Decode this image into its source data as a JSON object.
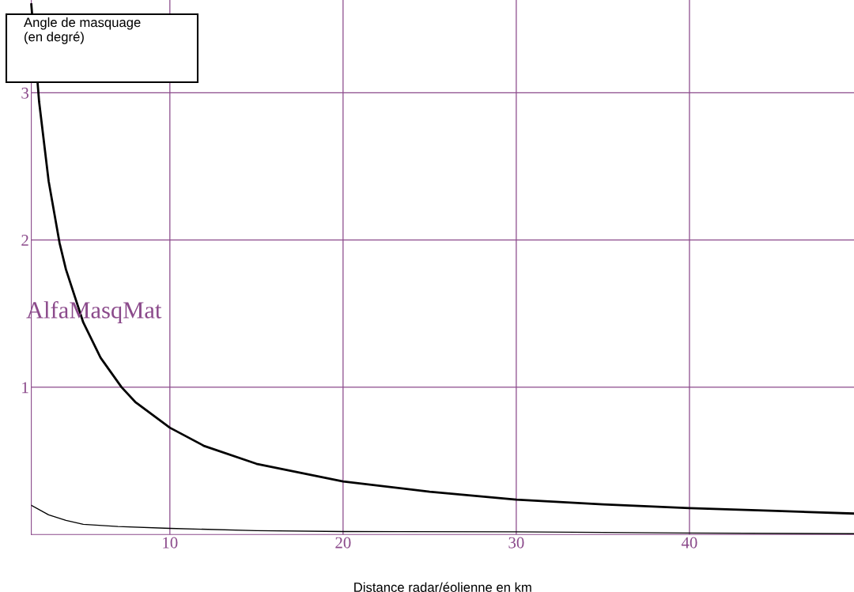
{
  "chart_data": {
    "type": "line",
    "xlabel": "Distance radar/éolienne en km",
    "ylabel": "Angle de masquage\n(en degré)",
    "annotations": [
      "AlfaMasqMat"
    ],
    "xlim": [
      2,
      49.5
    ],
    "ylim": [
      0,
      3.63
    ],
    "xticks": [
      10,
      20,
      30,
      40
    ],
    "yticks": [
      1,
      2,
      3
    ],
    "grid": true,
    "marker": "none",
    "line_style": "solid",
    "series": [
      {
        "color": "#000000",
        "x": [
          2,
          2.45,
          3,
          3.63,
          4,
          5,
          6,
          7.21,
          8,
          10,
          12,
          15,
          20,
          25,
          30,
          35,
          40,
          45,
          49.5
        ],
        "values": [
          3.6,
          2.94,
          2.4,
          1.98,
          1.8,
          1.44,
          1.2,
          1.0,
          0.9,
          0.725,
          0.6,
          0.48,
          0.36,
          0.29,
          0.237,
          0.205,
          0.179,
          0.16,
          0.142
        ]
      },
      {
        "color": "#000000",
        "x": [
          2,
          3,
          4,
          5,
          7,
          10,
          15,
          20,
          30,
          40,
          49.5
        ],
        "values": [
          0.198,
          0.133,
          0.096,
          0.069,
          0.054,
          0.041,
          0.026,
          0.02,
          0.018,
          0.01,
          0.005
        ]
      }
    ]
  }
}
